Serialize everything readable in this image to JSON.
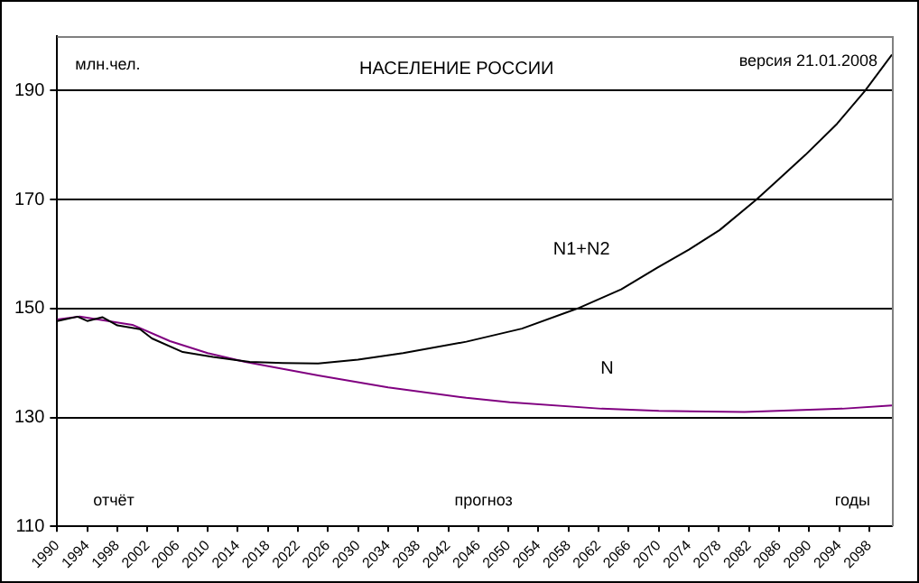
{
  "chart_data": {
    "type": "line",
    "title": "НАСЕЛЕНИЕ РОССИИ",
    "ylabel": "млн.чел.",
    "xlabel": "годы",
    "annotations": [
      "версия 21.01.2008",
      "отчёт",
      "прогноз"
    ],
    "xlim": [
      1990,
      2101
    ],
    "xticks": [
      1990,
      1994,
      1998,
      2002,
      2006,
      2010,
      2014,
      2018,
      2022,
      2026,
      2030,
      2034,
      2038,
      2042,
      2046,
      2050,
      2054,
      2058,
      2062,
      2066,
      2070,
      2074,
      2078,
      2082,
      2086,
      2090,
      2094,
      2098
    ],
    "ylim": [
      110,
      200
    ],
    "yticks": [
      110,
      130,
      150,
      170,
      190
    ],
    "grid": "y",
    "legend": false,
    "marker": "none",
    "line_style": "solid",
    "series": [
      {
        "name": "N1+N2",
        "color": "#000000",
        "x": [
          1990,
          1992.7,
          1994,
          1996,
          1998,
          2001,
          2002.6,
          2006.7,
          2010.7,
          2015.6,
          2020,
          2024.7,
          2030,
          2036,
          2044.4,
          2051.8,
          2059.2,
          2065,
          2069.8,
          2074,
          2078.1,
          2083,
          2086,
          2089.5,
          2093.7,
          2097.4,
          2101
        ],
        "values": [
          147.7,
          148.5,
          147.7,
          148.4,
          146.9,
          146.2,
          144.5,
          142,
          141.1,
          140.2,
          140,
          139.9,
          140.6,
          141.8,
          143.9,
          146.3,
          150,
          153.5,
          157.5,
          160.8,
          164.4,
          170,
          173.8,
          178.2,
          183.9,
          189.9,
          196.6
        ]
      },
      {
        "name": "N",
        "color": "#800080",
        "x": [
          1990,
          1993,
          2000,
          2005,
          2010,
          2015,
          2024.7,
          2034,
          2044.4,
          2050.2,
          2062.4,
          2070,
          2081.4,
          2094.4,
          2101
        ],
        "values": [
          148,
          148.5,
          147,
          144,
          141.8,
          140.2,
          137.7,
          135.5,
          133.6,
          132.8,
          131.6,
          131.2,
          131,
          131.6,
          132.2
        ]
      }
    ]
  }
}
